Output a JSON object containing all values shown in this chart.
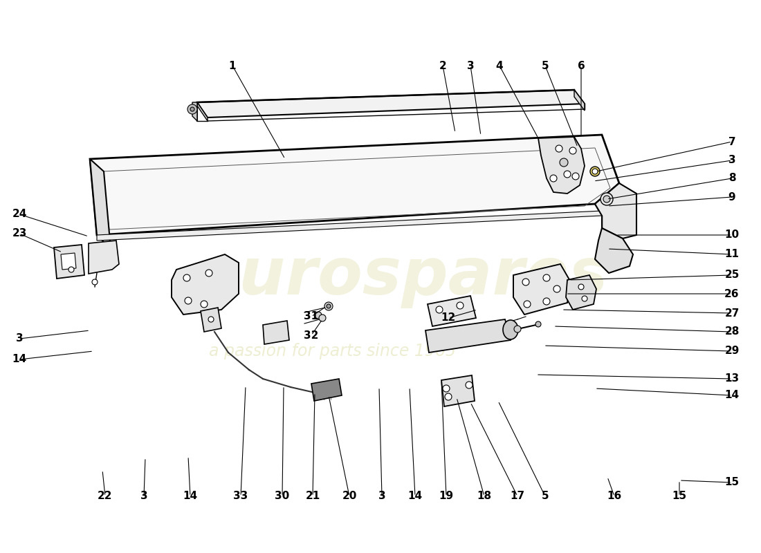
{
  "bg_color": "#ffffff",
  "line_color": "#000000",
  "face_color": "#f5f5f5",
  "face_color2": "#ebebeb",
  "face_color3": "#e0e0e0",
  "watermark1": "eurospares",
  "watermark2": "a passion for parts since 1965",
  "right_labels": [
    [
      "7",
      1060,
      205
    ],
    [
      "3",
      1060,
      232
    ],
    [
      "8",
      1060,
      258
    ],
    [
      "9",
      1060,
      285
    ],
    [
      "10",
      1060,
      340
    ],
    [
      "11",
      1060,
      368
    ],
    [
      "25",
      1060,
      398
    ],
    [
      "26",
      1060,
      425
    ],
    [
      "27",
      1060,
      453
    ],
    [
      "28",
      1060,
      480
    ],
    [
      "29",
      1060,
      508
    ],
    [
      "13",
      1060,
      548
    ],
    [
      "14",
      1060,
      572
    ],
    [
      "15",
      1060,
      698
    ]
  ],
  "top_labels": [
    [
      "1",
      336,
      95
    ],
    [
      "2",
      640,
      95
    ],
    [
      "3",
      680,
      95
    ],
    [
      "4",
      722,
      95
    ],
    [
      "5",
      788,
      95
    ],
    [
      "6",
      840,
      95
    ]
  ],
  "left_labels": [
    [
      "24",
      28,
      310
    ],
    [
      "23",
      28,
      338
    ],
    [
      "3",
      28,
      490
    ],
    [
      "14",
      28,
      520
    ]
  ],
  "bottom_labels": [
    [
      "22",
      152,
      718
    ],
    [
      "3",
      208,
      718
    ],
    [
      "14",
      275,
      718
    ],
    [
      "33",
      348,
      718
    ],
    [
      "30",
      408,
      718
    ],
    [
      "21",
      452,
      718
    ],
    [
      "20",
      505,
      718
    ],
    [
      "3",
      552,
      718
    ],
    [
      "14",
      600,
      718
    ],
    [
      "19",
      645,
      718
    ],
    [
      "18",
      700,
      718
    ],
    [
      "17",
      748,
      718
    ],
    [
      "5",
      788,
      718
    ],
    [
      "16",
      888,
      718
    ],
    [
      "15",
      982,
      718
    ]
  ],
  "mid_labels": [
    [
      "31",
      450,
      458
    ],
    [
      "32",
      450,
      485
    ],
    [
      "12",
      648,
      460
    ]
  ]
}
